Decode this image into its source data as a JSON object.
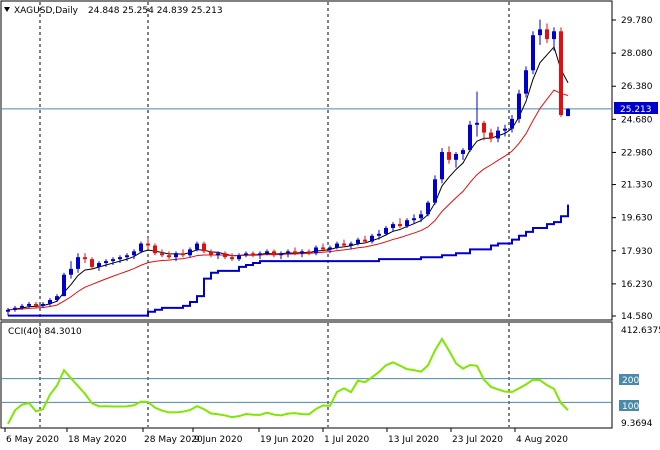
{
  "header": {
    "symbol": "XAGUSD,Daily",
    "ohlc": "24.848 25.254 24.839 25.213"
  },
  "price_axis": {
    "labels": [
      "29.780",
      "28.080",
      "26.380",
      "24.680",
      "22.980",
      "21.330",
      "19.630",
      "17.930",
      "16.230",
      "14.580"
    ],
    "current_price": "25.213"
  },
  "cci": {
    "header": "CCI(40) 84.3010",
    "max_label": "412.6375",
    "min_label": "9.3694",
    "level_200": "200",
    "level_100": "100"
  },
  "time_axis": {
    "labels": [
      "6 May 2020",
      "18 May 2020",
      "28 May 2020",
      "9 Jun 2020",
      "19 Jun 2020",
      "1 Jul 2020",
      "13 Jul 2020",
      "23 Jul 2020",
      "4 Aug 2020"
    ]
  },
  "colors": {
    "bull": "#0000cc",
    "bear": "#e01010",
    "ma_fast": "#000000",
    "ma_slow": "#e01010",
    "stop_line": "#0000cc",
    "cci_line": "#7ee800",
    "level_line": "#4a8aa8",
    "grid": "#000000",
    "badge_bg": "#0000cc"
  },
  "chart_data": {
    "type": "candlestick",
    "title": "XAGUSD,Daily",
    "ylim": [
      14.58,
      29.78
    ],
    "dates": [
      "6 May 2020",
      "18 May 2020",
      "28 May 2020",
      "9 Jun 2020",
      "19 Jun 2020",
      "1 Jul 2020",
      "13 Jul 2020",
      "23 Jul 2020",
      "4 Aug 2020"
    ],
    "ohlc": [
      [
        14.8,
        15.0,
        14.6,
        14.9
      ],
      [
        14.9,
        15.1,
        14.8,
        15.0
      ],
      [
        15.0,
        15.2,
        14.9,
        15.1
      ],
      [
        15.1,
        15.3,
        15.0,
        15.2
      ],
      [
        15.2,
        15.3,
        15.0,
        15.1
      ],
      [
        15.1,
        15.3,
        15.0,
        15.2
      ],
      [
        15.2,
        15.5,
        15.1,
        15.4
      ],
      [
        15.4,
        15.7,
        15.3,
        15.6
      ],
      [
        15.6,
        16.8,
        15.6,
        16.7
      ],
      [
        16.7,
        17.4,
        16.5,
        17.0
      ],
      [
        17.0,
        17.8,
        16.8,
        17.6
      ],
      [
        17.6,
        17.8,
        17.3,
        17.5
      ],
      [
        17.5,
        17.6,
        17.0,
        17.1
      ],
      [
        17.1,
        17.4,
        16.9,
        17.3
      ],
      [
        17.3,
        17.5,
        17.1,
        17.4
      ],
      [
        17.4,
        17.6,
        17.2,
        17.5
      ],
      [
        17.5,
        17.7,
        17.3,
        17.6
      ],
      [
        17.6,
        17.8,
        17.4,
        17.7
      ],
      [
        17.7,
        18.0,
        17.5,
        17.9
      ],
      [
        17.9,
        18.4,
        17.8,
        18.3
      ],
      [
        18.3,
        18.6,
        18.0,
        18.2
      ],
      [
        18.2,
        18.3,
        17.7,
        17.8
      ],
      [
        17.8,
        18.0,
        17.6,
        17.7
      ],
      [
        17.7,
        17.9,
        17.5,
        17.6
      ],
      [
        17.6,
        17.9,
        17.4,
        17.8
      ],
      [
        17.8,
        18.0,
        17.6,
        17.7
      ],
      [
        17.7,
        18.1,
        17.6,
        18.0
      ],
      [
        18.0,
        18.4,
        17.9,
        18.3
      ],
      [
        18.3,
        18.4,
        17.8,
        17.9
      ],
      [
        17.9,
        18.0,
        17.6,
        17.7
      ],
      [
        17.7,
        17.9,
        17.5,
        17.8
      ],
      [
        17.8,
        17.9,
        17.5,
        17.6
      ],
      [
        17.6,
        17.8,
        17.4,
        17.5
      ],
      [
        17.5,
        17.8,
        17.4,
        17.7
      ],
      [
        17.7,
        17.9,
        17.6,
        17.8
      ],
      [
        17.8,
        17.9,
        17.6,
        17.7
      ],
      [
        17.7,
        17.9,
        17.5,
        17.8
      ],
      [
        17.8,
        18.0,
        17.7,
        17.9
      ],
      [
        17.9,
        18.0,
        17.6,
        17.7
      ],
      [
        17.7,
        17.9,
        17.5,
        17.8
      ],
      [
        17.8,
        18.0,
        17.6,
        17.9
      ],
      [
        17.9,
        18.1,
        17.7,
        17.8
      ],
      [
        17.8,
        18.0,
        17.6,
        17.9
      ],
      [
        17.9,
        18.0,
        17.7,
        17.8
      ],
      [
        17.8,
        18.2,
        17.7,
        18.1
      ],
      [
        18.1,
        18.3,
        17.9,
        18.0
      ],
      [
        18.0,
        18.2,
        17.8,
        18.1
      ],
      [
        18.1,
        18.4,
        18.0,
        18.3
      ],
      [
        18.3,
        18.5,
        18.1,
        18.2
      ],
      [
        18.2,
        18.4,
        18.0,
        18.3
      ],
      [
        18.3,
        18.6,
        18.2,
        18.5
      ],
      [
        18.5,
        18.7,
        18.3,
        18.4
      ],
      [
        18.4,
        18.8,
        18.3,
        18.7
      ],
      [
        18.7,
        19.0,
        18.5,
        18.8
      ],
      [
        18.8,
        19.2,
        18.7,
        19.1
      ],
      [
        19.1,
        19.4,
        18.9,
        19.3
      ],
      [
        19.3,
        19.6,
        19.1,
        19.2
      ],
      [
        19.2,
        19.6,
        19.1,
        19.5
      ],
      [
        19.5,
        19.8,
        19.3,
        19.6
      ],
      [
        19.6,
        20.0,
        19.4,
        19.8
      ],
      [
        19.8,
        20.5,
        19.7,
        20.4
      ],
      [
        20.4,
        21.8,
        20.3,
        21.6
      ],
      [
        21.6,
        23.2,
        21.4,
        23.0
      ],
      [
        23.0,
        23.3,
        22.4,
        22.6
      ],
      [
        22.6,
        23.0,
        22.2,
        22.9
      ],
      [
        22.9,
        23.2,
        22.6,
        23.1
      ],
      [
        23.1,
        24.6,
        23.0,
        24.4
      ],
      [
        24.4,
        26.1,
        23.8,
        24.5
      ],
      [
        24.5,
        24.6,
        23.6,
        24.0
      ],
      [
        24.0,
        24.2,
        23.5,
        23.7
      ],
      [
        23.7,
        24.3,
        23.5,
        24.1
      ],
      [
        24.1,
        24.4,
        23.8,
        24.2
      ],
      [
        24.2,
        24.9,
        24.0,
        24.7
      ],
      [
        24.7,
        26.2,
        24.5,
        26.0
      ],
      [
        26.0,
        27.4,
        25.8,
        27.2
      ],
      [
        27.2,
        29.2,
        27.0,
        29.0
      ],
      [
        29.0,
        29.8,
        28.5,
        29.3
      ],
      [
        29.3,
        29.6,
        28.6,
        28.8
      ],
      [
        28.8,
        29.4,
        28.2,
        29.2
      ],
      [
        29.2,
        29.4,
        24.8,
        24.9
      ],
      [
        24.848,
        25.254,
        24.839,
        25.213
      ]
    ],
    "cci": {
      "ylim": [
        9.3694,
        412.6375
      ],
      "levels": [
        200,
        100
      ],
      "last": 84.301
    }
  }
}
